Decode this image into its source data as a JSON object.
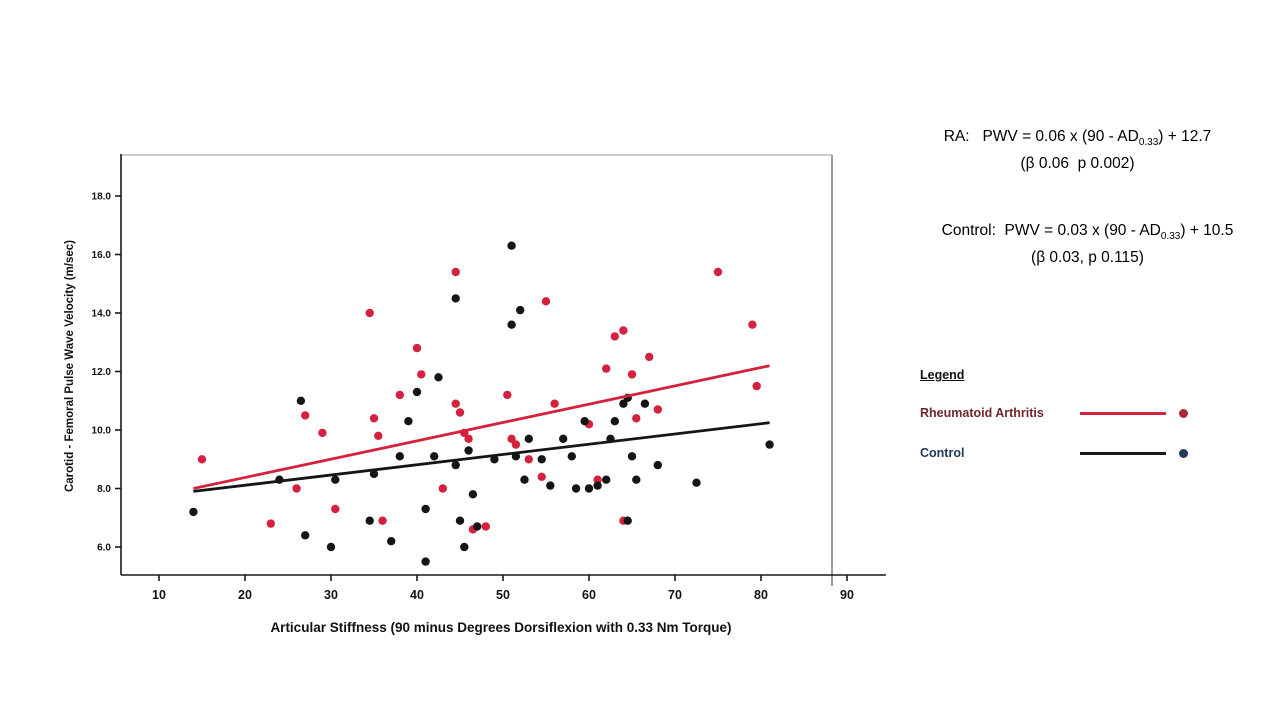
{
  "chart_data": {
    "type": "scatter",
    "xlabel": "Articular Stiffness (90 minus Degrees Dorsiflexion with 0.33 Nm Torque)",
    "ylabel": "Carotid - Femoral Pulse Wave Velocity (m/sec)",
    "x_ticks": [
      10,
      20,
      30,
      40,
      50,
      60,
      70,
      80,
      90
    ],
    "y_ticks": [
      "18.0",
      "16.0",
      "14.0",
      "12.0",
      "10.0",
      "8.0",
      "6.0"
    ],
    "xlim": [
      5.5,
      94
    ],
    "ylim": [
      5.0,
      19.4
    ],
    "grid": false,
    "legend_position": "right-panel",
    "series": [
      {
        "id": "ra",
        "name": "Rheumatoid Arthritis",
        "color": "#d4213d",
        "trend": {
          "x1": 14,
          "y1": 8.0,
          "x2": 81,
          "y2": 12.2
        },
        "points": [
          [
            15,
            9.0
          ],
          [
            23,
            6.8
          ],
          [
            26,
            8.0
          ],
          [
            27,
            10.5
          ],
          [
            29,
            9.9
          ],
          [
            30.5,
            7.3
          ],
          [
            34.5,
            14.0
          ],
          [
            35,
            10.4
          ],
          [
            35.5,
            9.8
          ],
          [
            36,
            6.9
          ],
          [
            38,
            11.2
          ],
          [
            40,
            12.8
          ],
          [
            40.5,
            11.9
          ],
          [
            43,
            8.0
          ],
          [
            44.5,
            15.4
          ],
          [
            44.5,
            10.9
          ],
          [
            45,
            10.6
          ],
          [
            45.5,
            9.9
          ],
          [
            46,
            9.7
          ],
          [
            46.5,
            6.6
          ],
          [
            48,
            6.7
          ],
          [
            50.5,
            11.2
          ],
          [
            51,
            9.7
          ],
          [
            51.5,
            9.5
          ],
          [
            53,
            9.0
          ],
          [
            54.5,
            8.4
          ],
          [
            55,
            14.4
          ],
          [
            56,
            10.9
          ],
          [
            60,
            10.2
          ],
          [
            61,
            8.3
          ],
          [
            62,
            12.1
          ],
          [
            63,
            13.2
          ],
          [
            64,
            13.4
          ],
          [
            64,
            6.9
          ],
          [
            65,
            11.9
          ],
          [
            65.5,
            10.4
          ],
          [
            67,
            12.5
          ],
          [
            68,
            10.7
          ],
          [
            75,
            15.4
          ],
          [
            79,
            13.6
          ],
          [
            79.5,
            11.5
          ]
        ]
      },
      {
        "id": "control",
        "name": "Control",
        "color": "#151515",
        "trend": {
          "x1": 14,
          "y1": 7.9,
          "x2": 81,
          "y2": 10.25
        },
        "points": [
          [
            14,
            7.2
          ],
          [
            24,
            8.3
          ],
          [
            26.5,
            11.0
          ],
          [
            27,
            6.4
          ],
          [
            30,
            6.0
          ],
          [
            30.5,
            8.3
          ],
          [
            34.5,
            6.9
          ],
          [
            35,
            8.5
          ],
          [
            37,
            6.2
          ],
          [
            38,
            9.1
          ],
          [
            39,
            10.3
          ],
          [
            40,
            11.3
          ],
          [
            41,
            7.3
          ],
          [
            41,
            5.5
          ],
          [
            42,
            9.1
          ],
          [
            42.5,
            11.8
          ],
          [
            44.5,
            14.5
          ],
          [
            44.5,
            8.8
          ],
          [
            45,
            6.9
          ],
          [
            45.5,
            6.0
          ],
          [
            46,
            9.3
          ],
          [
            46.5,
            7.8
          ],
          [
            47,
            6.7
          ],
          [
            49,
            9.0
          ],
          [
            51,
            16.3
          ],
          [
            51,
            13.6
          ],
          [
            52,
            14.1
          ],
          [
            51.5,
            9.1
          ],
          [
            52.5,
            8.3
          ],
          [
            53,
            9.7
          ],
          [
            54.5,
            9.0
          ],
          [
            55.5,
            8.1
          ],
          [
            57,
            9.7
          ],
          [
            58,
            9.1
          ],
          [
            58.5,
            8.0
          ],
          [
            59.5,
            10.3
          ],
          [
            60,
            8.0
          ],
          [
            61,
            8.1
          ],
          [
            62,
            8.3
          ],
          [
            62.5,
            9.7
          ],
          [
            63,
            10.3
          ],
          [
            64,
            10.9
          ],
          [
            64.5,
            11.1
          ],
          [
            64.5,
            6.9
          ],
          [
            65,
            9.1
          ],
          [
            65.5,
            8.3
          ],
          [
            66.5,
            10.9
          ],
          [
            68,
            8.8
          ],
          [
            72.5,
            8.2
          ],
          [
            81,
            9.5
          ]
        ]
      }
    ]
  },
  "annotations": {
    "ra": {
      "prefix": "RA:   PWV = 0.06 x (90 - AD",
      "sub": "0.33",
      "suffix": ") + 12.7",
      "stats": "(β 0.06  p 0.002)"
    },
    "control": {
      "prefix": "Control:  PWV = 0.03 x (90 - AD",
      "sub": "0.33",
      "suffix": ") + 10.5",
      "stats": "(β 0.03, p 0.115)"
    }
  },
  "legend": {
    "title": "Legend",
    "items": [
      {
        "id": "ra",
        "label": "Rheumatoid Arthritis",
        "line_color": "#d4213d",
        "dot_color": "#a82836",
        "label_color": "#6f272c"
      },
      {
        "id": "control",
        "label": "Control",
        "line_color": "#1a1a1a",
        "dot_color": "#1f3a5f",
        "label_color": "#20395c"
      }
    ]
  }
}
